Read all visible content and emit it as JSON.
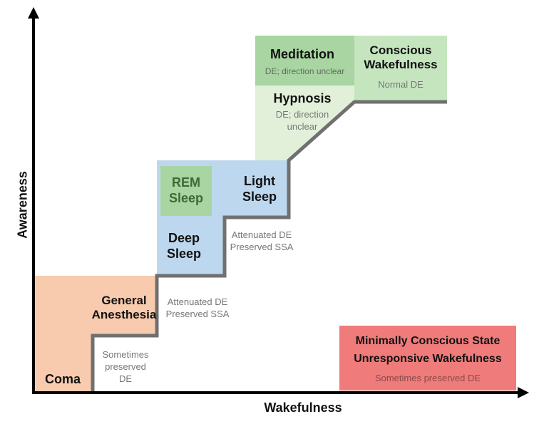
{
  "axes": {
    "x_label": "Wakefulness",
    "y_label": "Awareness"
  },
  "colors": {
    "coma": "#f9cbae",
    "sleep": "#bdd7ee",
    "rem": "#a8d5a2",
    "meditation": "#a8d5a2",
    "conscious": "#c5e5bf",
    "hypnosis": "#e2f0d9",
    "mcs": "#f07b7b",
    "staircase": "#707070",
    "axis": "#000000"
  },
  "states": {
    "coma": {
      "label": "Coma"
    },
    "general_anesthesia": {
      "label": "General Anesthesia",
      "note": "Sometimes preserved DE"
    },
    "deep_sleep": {
      "label": "Deep Sleep",
      "note": "Attenuated DE Preserved SSA"
    },
    "rem_sleep": {
      "label": "REM Sleep"
    },
    "light_sleep": {
      "label": "Light Sleep",
      "note": "Attenuated DE Preserved SSA"
    },
    "hypnosis": {
      "label": "Hypnosis",
      "note": "DE; direction unclear"
    },
    "meditation": {
      "label": "Meditation",
      "note": "DE; direction unclear"
    },
    "conscious_wakefulness": {
      "label": "Conscious Wakefulness",
      "note": "Normal DE"
    },
    "mcs": {
      "label_line1": "Minimally Conscious State",
      "label_line2": "Unresponsive Wakefulness",
      "note": "Sometimes preserved DE"
    }
  }
}
